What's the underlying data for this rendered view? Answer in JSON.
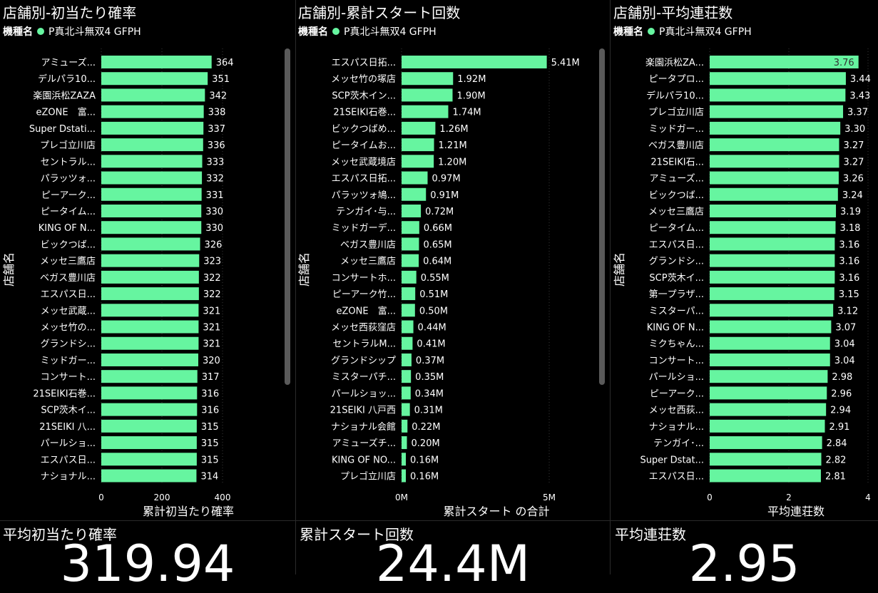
{
  "colors": {
    "bar": "#66f5a0",
    "background": "#000000",
    "text": "#ffffff"
  },
  "legend": {
    "label": "機種名",
    "series": "P真北斗無双4 GFPH"
  },
  "chart_data": [
    {
      "type": "bar",
      "orientation": "horizontal",
      "title": "店舗別-初当たり確率",
      "ylabel": "店舗名",
      "xlabel": "累計初当たり確率",
      "xlim": [
        0,
        400
      ],
      "xticks": [
        "0",
        "200",
        "400"
      ],
      "categories": [
        "アミューズ...",
        "デルパラ10...",
        "楽園浜松ZAZA",
        "eZONE　富...",
        "Super Dstati...",
        "プレゴ立川店",
        "セントラル...",
        "パラッツォ...",
        "ピーアーク...",
        "ピータイム...",
        "KING OF N...",
        "ビックつば...",
        "メッセ三鷹店",
        "ベガス豊川店",
        "エスパス日...",
        "メッセ武蔵...",
        "メッセ竹の...",
        "グランドシ...",
        "ミッドガー...",
        "コンサート...",
        "21SEIKI石巻...",
        "SCP茨木イ...",
        "21SEIKI 八...",
        "パールショ...",
        "エスパス日...",
        "ナショナル..."
      ],
      "values": [
        364,
        351,
        342,
        338,
        337,
        336,
        333,
        332,
        331,
        330,
        330,
        326,
        323,
        322,
        322,
        321,
        321,
        321,
        320,
        317,
        316,
        316,
        315,
        315,
        315,
        314
      ],
      "data_labels": [
        "364",
        "351",
        "342",
        "338",
        "337",
        "336",
        "333",
        "332",
        "331",
        "330",
        "330",
        "326",
        "323",
        "322",
        "322",
        "321",
        "321",
        "321",
        "320",
        "317",
        "316",
        "316",
        "315",
        "315",
        "315",
        "314"
      ],
      "grid": true
    },
    {
      "type": "bar",
      "orientation": "horizontal",
      "title": "店舗別-累計スタート回数",
      "ylabel": "店舗名",
      "xlabel": "累計スタート の合計",
      "xlim": [
        0,
        5.5
      ],
      "xticks": [
        "0M",
        "5M"
      ],
      "categories": [
        "エスパス日拓...",
        "メッセ竹の塚店",
        "SCP茨木イン...",
        "21SEIKI石巻...",
        "ビックつばめ...",
        "ピータイムお...",
        "メッセ武蔵境店",
        "エスパス日拓...",
        "パラッツォ鳩...",
        "テンガイ･与...",
        "ミッドガーデ...",
        "ベガス豊川店",
        "メッセ三鷹店",
        "コンサートホ...",
        "ピーアーク竹...",
        "eZONE　富...",
        "メッセ西荻窪店",
        "セントラルM...",
        "グランドシップ",
        "ミスターパチ...",
        "パールショッ...",
        "21SEIKI 八戸西",
        "ナショナル会館",
        "アミューズチ...",
        "KING OF NO...",
        "プレゴ立川店"
      ],
      "values": [
        5.41,
        1.92,
        1.9,
        1.74,
        1.26,
        1.21,
        1.2,
        0.97,
        0.91,
        0.72,
        0.66,
        0.65,
        0.64,
        0.55,
        0.51,
        0.5,
        0.44,
        0.41,
        0.37,
        0.35,
        0.34,
        0.31,
        0.22,
        0.2,
        0.16,
        0.16
      ],
      "data_labels": [
        "5.41M",
        "1.92M",
        "1.90M",
        "1.74M",
        "1.26M",
        "1.21M",
        "1.20M",
        "0.97M",
        "0.91M",
        "0.72M",
        "0.66M",
        "0.65M",
        "0.64M",
        "0.55M",
        "0.51M",
        "0.50M",
        "0.44M",
        "0.41M",
        "0.37M",
        "0.35M",
        "0.34M",
        "0.31M",
        "0.22M",
        "0.20M",
        "0.16M",
        "0.16M"
      ],
      "grid": true
    },
    {
      "type": "bar",
      "orientation": "horizontal",
      "title": "店舗別-平均連荘数",
      "ylabel": "店舗名",
      "xlabel": "平均連荘数",
      "xlim": [
        0,
        4
      ],
      "xticks": [
        "0",
        "2",
        "4"
      ],
      "categories": [
        "楽園浜松ZA...",
        "ピータプロ...",
        "デルパラ10...",
        "プレゴ立川店",
        "ミッドガー...",
        "ベガス豊川店",
        "21SEIKI石...",
        "アミューズ...",
        "ビックつば...",
        "メッセ三鷹店",
        "ピータイム...",
        "エスパス日...",
        "グランドシ...",
        "SCP茨木イ...",
        "第一プラザ...",
        "ミスターパ...",
        "KING OF N...",
        "ミクちゃん...",
        "コンサート...",
        "パールショ...",
        "ピーアーク...",
        "メッセ西荻...",
        "ナショナル...",
        "テンガイ･...",
        "Super Dstat...",
        "エスパス日..."
      ],
      "values": [
        3.76,
        3.44,
        3.43,
        3.37,
        3.3,
        3.27,
        3.27,
        3.26,
        3.24,
        3.19,
        3.18,
        3.16,
        3.16,
        3.16,
        3.15,
        3.12,
        3.07,
        3.04,
        3.04,
        2.98,
        2.96,
        2.94,
        2.91,
        2.84,
        2.82,
        2.81
      ],
      "data_labels": [
        "3.76",
        "3.44",
        "3.43",
        "3.37",
        "3.30",
        "3.27",
        "3.27",
        "3.26",
        "3.24",
        "3.19",
        "3.18",
        "3.16",
        "3.16",
        "3.16",
        "3.15",
        "3.12",
        "3.07",
        "3.04",
        "3.04",
        "2.98",
        "2.96",
        "2.94",
        "2.91",
        "2.84",
        "2.82",
        "2.81"
      ],
      "grid": true
    }
  ],
  "cards": [
    {
      "label": "平均初当たり確率",
      "value": "319.94"
    },
    {
      "label": "累計スタート回数",
      "value": "24.4M"
    },
    {
      "label": "平均連荘数",
      "value": "2.95"
    }
  ]
}
